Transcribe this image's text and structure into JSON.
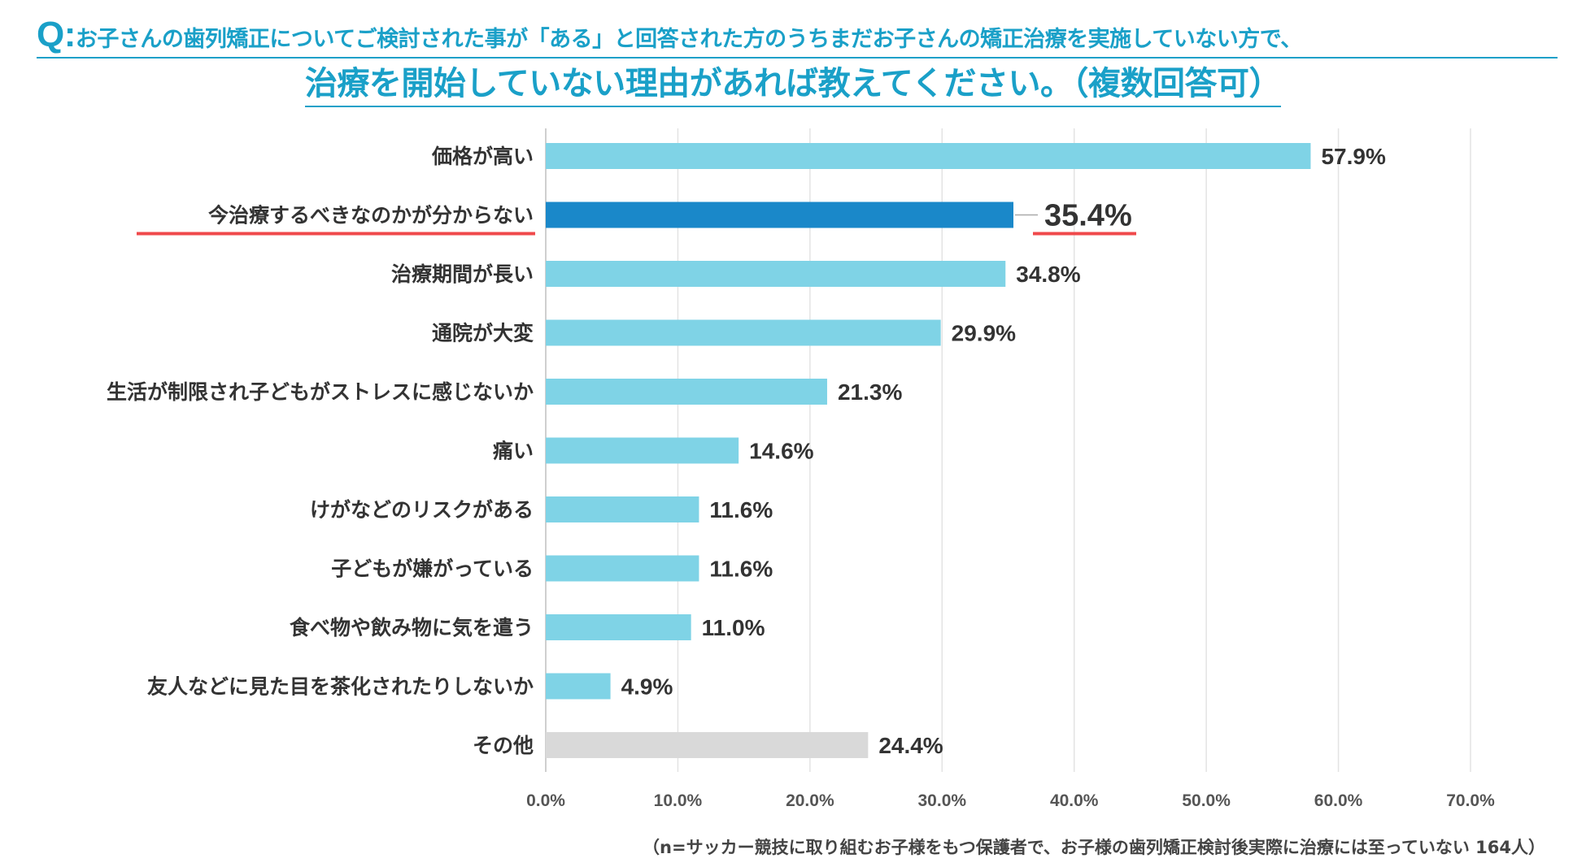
{
  "title": {
    "q": "Q:",
    "line1": "お子さんの歯列矯正についてご検討された事が「ある」と回答された方のうちまだお子さんの矯正治療を実施していない方で、",
    "line2": "治療を開始していない理由があれば教えてください。（複数回答可）"
  },
  "footnote": "（n=サッカー競技に取り組むお子様をもつ保護者で、お子様の歯列矯正検討後実際に治療には至っていない 164人）",
  "colors": {
    "default": "#7fd3e6",
    "highlight": "#1a88c9",
    "other": "#d9d9d9",
    "title": "#1aa0c8",
    "underline": "#f0494b"
  },
  "chart_data": {
    "type": "bar",
    "orientation": "horizontal",
    "categories": [
      "価格が高い",
      "今治療するべきなのかが分からない",
      "治療期間が長い",
      "通院が大変",
      "生活が制限され子どもがストレスに感じないか",
      "痛い",
      "けがなどのリスクがある",
      "子どもが嫌がっている",
      "食べ物や飲み物に気を遣う",
      "友人などに見た目を茶化されたりしないか",
      "その他"
    ],
    "values": [
      57.9,
      35.4,
      34.8,
      29.9,
      21.3,
      14.6,
      11.6,
      11.6,
      11.0,
      4.9,
      24.4
    ],
    "labels": [
      "57.9%",
      "35.4%",
      "34.8%",
      "29.9%",
      "21.3%",
      "14.6%",
      "11.6%",
      "11.6%",
      "11.0%",
      "4.9%",
      "24.4%"
    ],
    "highlight_index": 1,
    "other_index": 10,
    "xlim": [
      0,
      70
    ],
    "xticks": [
      "0.0%",
      "10.0%",
      "20.0%",
      "30.0%",
      "40.0%",
      "50.0%",
      "60.0%",
      "70.0%"
    ],
    "grid": true
  }
}
